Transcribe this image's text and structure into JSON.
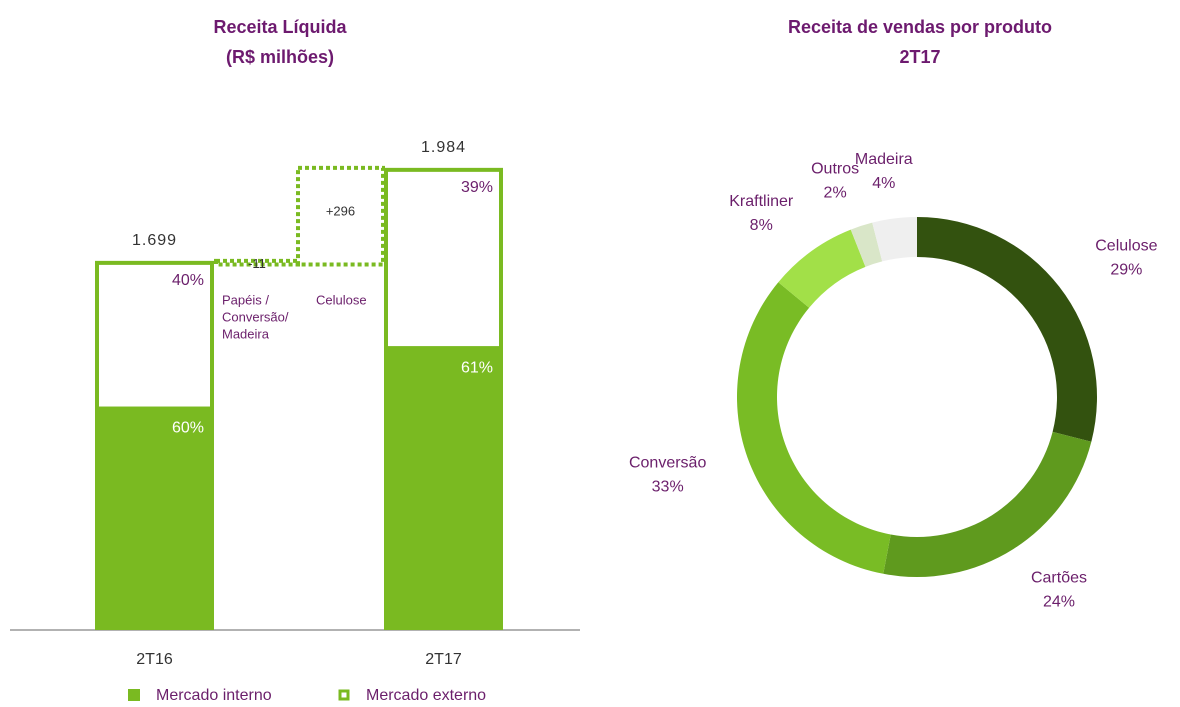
{
  "chart_data": [
    {
      "type": "waterfall",
      "title": "Receita Líquida",
      "subtitle": "(R$ milhões)",
      "categories": [
        "2T16",
        "2T17"
      ],
      "totals": [
        1699,
        1984
      ],
      "total_labels": [
        "1.699",
        "1.984"
      ],
      "ylim": [
        568,
        2100
      ],
      "series": [
        {
          "name": "Mercado interno",
          "color": "#7aba21",
          "values": [
            60,
            61
          ],
          "value_labels": [
            "60%",
            "61%"
          ]
        },
        {
          "name": "Mercado externo",
          "color": "#7aba21",
          "values": [
            40,
            39
          ],
          "value_labels": [
            "40%",
            "39%"
          ]
        }
      ],
      "steps": [
        {
          "label": [
            "Papéis /",
            "Conversão/",
            "Madeira"
          ],
          "value": -11,
          "value_label": "-11"
        },
        {
          "label": [
            "Celulose"
          ],
          "value": 296,
          "value_label": "+296"
        }
      ]
    },
    {
      "type": "donut",
      "title": "Receita de vendas por produto",
      "subtitle": "2T17",
      "categories": [
        "Celulose",
        "Cartões",
        "Conversão",
        "Kraftliner",
        "Outros",
        "Madeira"
      ],
      "values": [
        29,
        24,
        33,
        8,
        2,
        4
      ],
      "value_labels": [
        "29%",
        "24%",
        "33%",
        "8%",
        "2%",
        "4%"
      ],
      "colors": [
        "#33520f",
        "#5f9a1e",
        "#79bc25",
        "#a2e048",
        "#d9e6c8",
        "#efefef"
      ]
    }
  ]
}
